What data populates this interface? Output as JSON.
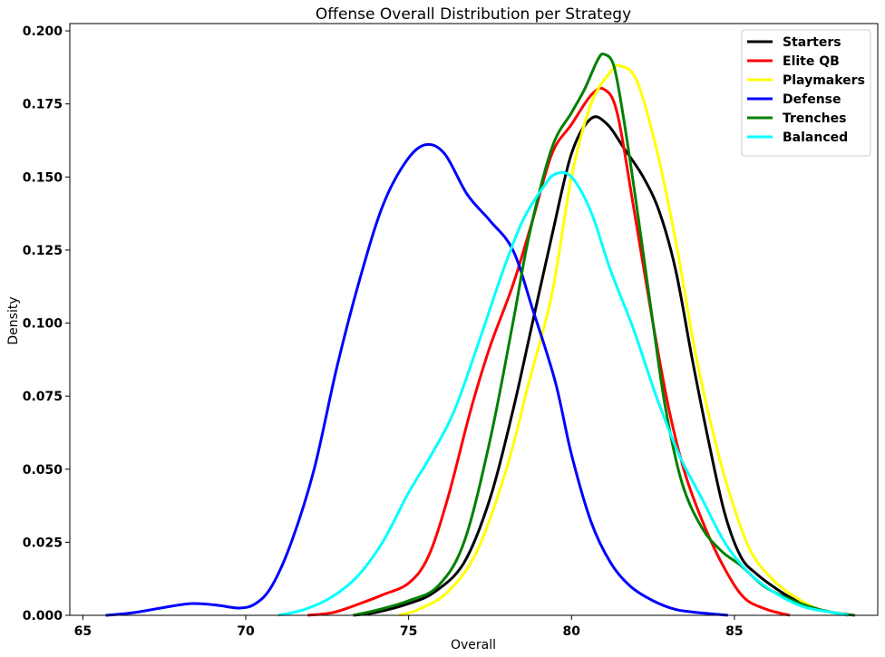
{
  "chart_data": {
    "type": "line",
    "title": "Offense Overall Distribution per Strategy",
    "xlabel": "Overall",
    "ylabel": "Density",
    "xlim": [
      64.6,
      89.4
    ],
    "ylim": [
      0,
      0.2025
    ],
    "x_ticks": [
      {
        "value": 65,
        "label": "65"
      },
      {
        "value": 70,
        "label": "70"
      },
      {
        "value": 75,
        "label": "75"
      },
      {
        "value": 80,
        "label": "80"
      },
      {
        "value": 85,
        "label": "85"
      }
    ],
    "y_ticks": [
      {
        "value": 0.0,
        "label": "0.000"
      },
      {
        "value": 0.025,
        "label": "0.025"
      },
      {
        "value": 0.05,
        "label": "0.050"
      },
      {
        "value": 0.075,
        "label": "0.075"
      },
      {
        "value": 0.1,
        "label": "0.100"
      },
      {
        "value": 0.125,
        "label": "0.125"
      },
      {
        "value": 0.15,
        "label": "0.150"
      },
      {
        "value": 0.175,
        "label": "0.175"
      },
      {
        "value": 0.2,
        "label": "0.200"
      }
    ],
    "grid": false,
    "legend_position": "top-right",
    "series": [
      {
        "name": "Starters",
        "color": "#000000",
        "points": [
          [
            73.3,
            0.0
          ],
          [
            74.0,
            0.001
          ],
          [
            75.0,
            0.004
          ],
          [
            75.8,
            0.008
          ],
          [
            76.7,
            0.018
          ],
          [
            77.5,
            0.04
          ],
          [
            78.2,
            0.07
          ],
          [
            78.8,
            0.1
          ],
          [
            79.4,
            0.13
          ],
          [
            80.0,
            0.158
          ],
          [
            80.6,
            0.17
          ],
          [
            81.1,
            0.168
          ],
          [
            81.6,
            0.16
          ],
          [
            82.2,
            0.15
          ],
          [
            82.7,
            0.138
          ],
          [
            83.2,
            0.118
          ],
          [
            83.7,
            0.088
          ],
          [
            84.2,
            0.06
          ],
          [
            84.7,
            0.035
          ],
          [
            85.2,
            0.02
          ],
          [
            85.7,
            0.014
          ],
          [
            86.3,
            0.009
          ],
          [
            86.9,
            0.005
          ],
          [
            87.6,
            0.002
          ],
          [
            88.5,
            0.0
          ]
        ]
      },
      {
        "name": "Elite QB",
        "color": "#ff0000",
        "points": [
          [
            71.9,
            0.0
          ],
          [
            72.7,
            0.001
          ],
          [
            73.5,
            0.004
          ],
          [
            74.2,
            0.007
          ],
          [
            75.0,
            0.011
          ],
          [
            75.6,
            0.02
          ],
          [
            76.2,
            0.04
          ],
          [
            76.9,
            0.07
          ],
          [
            77.5,
            0.092
          ],
          [
            78.2,
            0.113
          ],
          [
            78.8,
            0.135
          ],
          [
            79.4,
            0.158
          ],
          [
            80.0,
            0.168
          ],
          [
            80.6,
            0.178
          ],
          [
            81.0,
            0.18
          ],
          [
            81.4,
            0.172
          ],
          [
            81.9,
            0.14
          ],
          [
            82.5,
            0.1
          ],
          [
            83.0,
            0.07
          ],
          [
            83.5,
            0.048
          ],
          [
            84.1,
            0.03
          ],
          [
            84.7,
            0.016
          ],
          [
            85.3,
            0.006
          ],
          [
            86.0,
            0.002
          ],
          [
            86.7,
            0.0
          ]
        ]
      },
      {
        "name": "Playmakers",
        "color": "#ffff00",
        "points": [
          [
            74.7,
            0.0
          ],
          [
            75.3,
            0.002
          ],
          [
            76.2,
            0.008
          ],
          [
            77.1,
            0.022
          ],
          [
            78.0,
            0.05
          ],
          [
            78.7,
            0.08
          ],
          [
            79.4,
            0.11
          ],
          [
            80.0,
            0.15
          ],
          [
            80.6,
            0.175
          ],
          [
            81.2,
            0.186
          ],
          [
            81.5,
            0.188
          ],
          [
            82.0,
            0.183
          ],
          [
            82.6,
            0.16
          ],
          [
            83.2,
            0.128
          ],
          [
            83.8,
            0.09
          ],
          [
            84.4,
            0.06
          ],
          [
            84.9,
            0.04
          ],
          [
            85.5,
            0.022
          ],
          [
            86.2,
            0.012
          ],
          [
            86.9,
            0.006
          ],
          [
            87.6,
            0.002
          ],
          [
            88.5,
            0.0
          ]
        ]
      },
      {
        "name": "Defense",
        "color": "#0000ff",
        "points": [
          [
            65.7,
            0.0
          ],
          [
            66.5,
            0.0008
          ],
          [
            67.4,
            0.0025
          ],
          [
            68.3,
            0.004
          ],
          [
            69.1,
            0.0035
          ],
          [
            69.8,
            0.0025
          ],
          [
            70.3,
            0.004
          ],
          [
            70.8,
            0.01
          ],
          [
            71.4,
            0.025
          ],
          [
            72.1,
            0.05
          ],
          [
            72.8,
            0.085
          ],
          [
            73.5,
            0.115
          ],
          [
            74.2,
            0.14
          ],
          [
            74.9,
            0.155
          ],
          [
            75.5,
            0.161
          ],
          [
            76.1,
            0.158
          ],
          [
            76.8,
            0.144
          ],
          [
            77.5,
            0.135
          ],
          [
            78.2,
            0.125
          ],
          [
            78.8,
            0.105
          ],
          [
            79.5,
            0.08
          ],
          [
            80.0,
            0.055
          ],
          [
            80.6,
            0.032
          ],
          [
            81.2,
            0.018
          ],
          [
            81.8,
            0.01
          ],
          [
            82.5,
            0.005
          ],
          [
            83.2,
            0.002
          ],
          [
            84.0,
            0.0008
          ],
          [
            84.8,
            0.0
          ]
        ]
      },
      {
        "name": "Trenches",
        "color": "#008000",
        "points": [
          [
            73.3,
            0.0
          ],
          [
            74.1,
            0.002
          ],
          [
            75.0,
            0.005
          ],
          [
            75.9,
            0.01
          ],
          [
            76.7,
            0.025
          ],
          [
            77.5,
            0.06
          ],
          [
            78.2,
            0.1
          ],
          [
            78.7,
            0.13
          ],
          [
            79.4,
            0.16
          ],
          [
            80.0,
            0.172
          ],
          [
            80.4,
            0.18
          ],
          [
            80.8,
            0.19
          ],
          [
            81.0,
            0.192
          ],
          [
            81.3,
            0.188
          ],
          [
            81.6,
            0.17
          ],
          [
            82.0,
            0.14
          ],
          [
            82.5,
            0.1
          ],
          [
            82.9,
            0.07
          ],
          [
            83.4,
            0.045
          ],
          [
            84.0,
            0.03
          ],
          [
            84.6,
            0.022
          ],
          [
            85.2,
            0.017
          ],
          [
            85.9,
            0.01
          ],
          [
            86.6,
            0.006
          ],
          [
            87.3,
            0.003
          ],
          [
            88.0,
            0.001
          ],
          [
            88.7,
            0.0
          ]
        ]
      },
      {
        "name": "Balanced",
        "color": "#00ffff",
        "points": [
          [
            71.0,
            0.0
          ],
          [
            71.8,
            0.002
          ],
          [
            72.6,
            0.006
          ],
          [
            73.4,
            0.013
          ],
          [
            74.2,
            0.025
          ],
          [
            75.0,
            0.042
          ],
          [
            75.7,
            0.055
          ],
          [
            76.4,
            0.07
          ],
          [
            77.2,
            0.095
          ],
          [
            77.9,
            0.118
          ],
          [
            78.5,
            0.135
          ],
          [
            79.1,
            0.146
          ],
          [
            79.5,
            0.151
          ],
          [
            80.0,
            0.15
          ],
          [
            80.6,
            0.138
          ],
          [
            81.2,
            0.118
          ],
          [
            81.9,
            0.098
          ],
          [
            82.6,
            0.075
          ],
          [
            83.3,
            0.055
          ],
          [
            84.0,
            0.04
          ],
          [
            84.7,
            0.025
          ],
          [
            85.4,
            0.015
          ],
          [
            86.2,
            0.008
          ],
          [
            87.1,
            0.003
          ],
          [
            88.0,
            0.001
          ],
          [
            88.5,
            0.0
          ]
        ]
      }
    ]
  }
}
